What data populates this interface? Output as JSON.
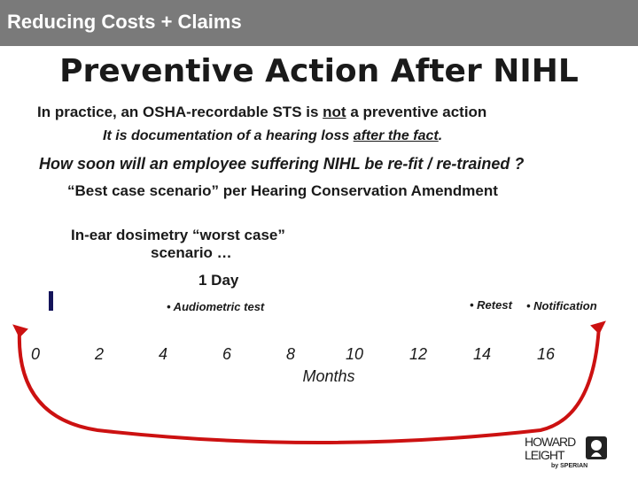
{
  "header": {
    "title": "Reducing Costs + Claims"
  },
  "slide": {
    "title": "Preventive Action After NIHL",
    "line1_prefix": "In practice, an OSHA-recordable STS is ",
    "line1_emphasis": "not",
    "line1_suffix": " a preventive action",
    "line2_prefix": "It is documentation of a hearing loss ",
    "line2_emphasis": "after the fact",
    "line2_suffix": ".",
    "question": "How soon will an employee suffering NIHL be re-fit / re-trained ?",
    "best_case": "“Best case scenario” per Hearing Conservation Amendment",
    "worst_case_line1": "In-ear dosimetry “worst case”",
    "worst_case_line2": "scenario …",
    "one_day": "1 Day"
  },
  "timeline": {
    "labels": {
      "audiometric": "• Audiometric test",
      "retest": "• Retest",
      "notification": "• Notification"
    },
    "ticks": [
      "0",
      "2",
      "4",
      "6",
      "8",
      "10",
      "12",
      "14",
      "16"
    ],
    "axis_label": "Months",
    "colors": {
      "arc": "#cc1111",
      "marker": "#14145a"
    }
  },
  "logo": {
    "line1": "HOWARD",
    "line2": "LEIGHT",
    "byline": "by SPERIAN"
  }
}
